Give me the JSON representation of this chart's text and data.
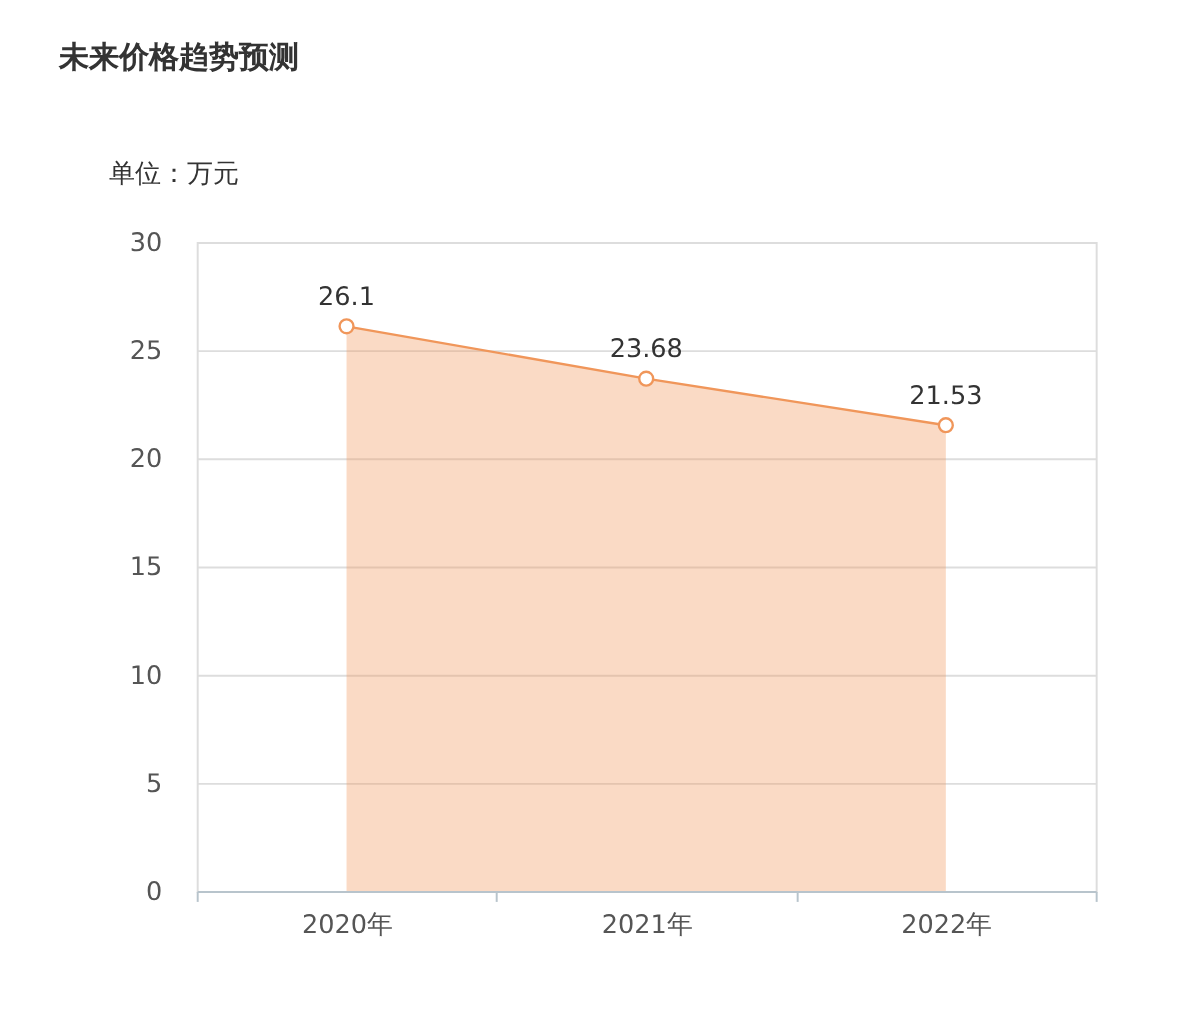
{
  "chart_data": {
    "type": "area",
    "title": "未来价格趋势预测",
    "ylabel": "单位：万元",
    "categories": [
      "2020年",
      "2021年",
      "2022年"
    ],
    "series": [
      {
        "color": "#f0965a",
        "values": [
          26.1,
          23.68,
          21.53
        ]
      }
    ],
    "ylim": [
      0,
      30
    ],
    "yticks": [
      0,
      5,
      10,
      15,
      20,
      25,
      30
    ],
    "grid": "y",
    "marker": "circle",
    "data_labels": true
  }
}
